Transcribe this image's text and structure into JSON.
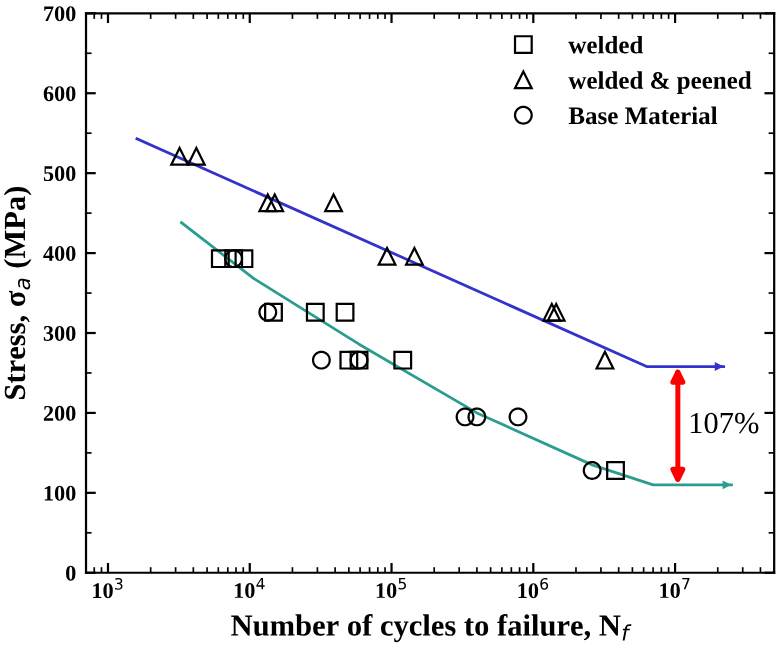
{
  "chart_data": {
    "type": "scatter",
    "xlabel": "Number of cycles to failure, N$_{f}$",
    "ylabel": "Stress, σ$_{a}$ (MPa)",
    "log": "x",
    "xlim": [
      700,
      50000000
    ],
    "xticks": [
      {
        "value": 1000,
        "label": "10$^{3}$"
      },
      {
        "value": 10000,
        "label": "10$^{4}$"
      },
      {
        "value": 100000,
        "label": "10$^{5}$"
      },
      {
        "value": 1000000,
        "label": "10$^{6}$"
      },
      {
        "value": 10000000,
        "label": "10$^{7}$"
      }
    ],
    "ylim": [
      0,
      700
    ],
    "yticks": [
      0,
      100,
      200,
      300,
      400,
      500,
      600,
      700
    ],
    "legend": "top right",
    "grid": false,
    "series": [
      {
        "name": "welded",
        "marker": "square",
        "color": "#000000",
        "x": [
          6200,
          7700,
          9100,
          14700,
          29000,
          47000,
          50000,
          59000,
          120000,
          3800000
        ],
        "values": [
          393,
          393,
          393,
          326,
          326,
          326,
          266,
          266,
          266,
          128
        ]
      },
      {
        "name": "welded & peened",
        "marker": "triangle",
        "color": "#000000",
        "x": [
          3200,
          4200,
          13400,
          15000,
          39000,
          93000,
          145000,
          1350000,
          1450000,
          3200000
        ],
        "values": [
          521,
          521,
          463,
          463,
          463,
          396,
          396,
          326,
          326,
          266
        ]
      },
      {
        "name": "Base Material",
        "marker": "circle",
        "color": "#000000",
        "x": [
          7700,
          13400,
          32000,
          59000,
          330000,
          400000,
          780000,
          2600000
        ],
        "values": [
          393,
          326,
          266,
          266,
          195,
          195,
          195,
          128
        ]
      },
      {
        "type": "line",
        "marker": "none",
        "color": "#3333cc",
        "x": [
          1600,
          6300000,
          22000000
        ],
        "values": [
          543,
          258,
          258
        ]
      },
      {
        "type": "line",
        "marker": "none",
        "color": "#2a9d8f",
        "x": [
          3300,
          10700,
          59000,
          400000,
          2600000,
          7000000,
          25000000
        ],
        "values": [
          438,
          368,
          286,
          200,
          135,
          110,
          110
        ]
      }
    ],
    "annotations": [
      "107%"
    ]
  }
}
